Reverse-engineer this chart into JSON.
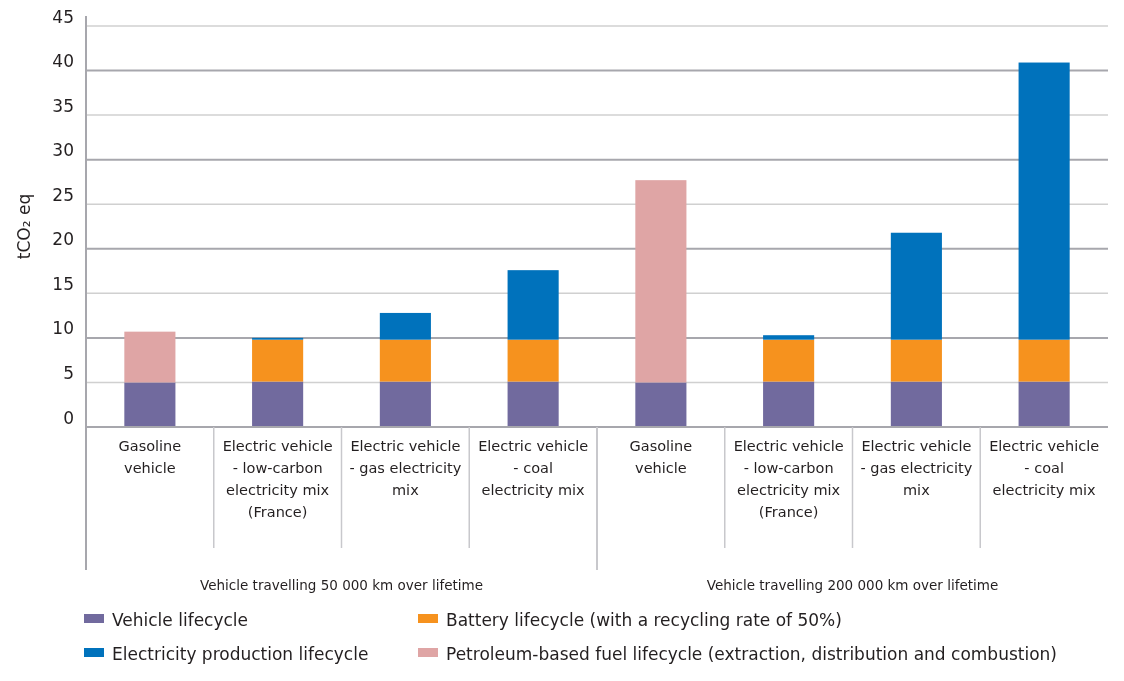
{
  "chart_data": {
    "type": "bar",
    "stacked": true,
    "ylabel": "tCO₂ eq",
    "categories": [
      "Gasoline vehicle",
      "Electric vehicle - low-carbon electricity mix (France)",
      "Electric vehicle - gas electricity mix",
      "Electric vehicle - coal electricity mix",
      "Gasoline vehicle",
      "Electric vehicle - low-carbon electricity mix (France)",
      "Electric vehicle - gas electricity mix",
      "Electric vehicle - coal electricity mix"
    ],
    "annotations": [
      "Vehicle travelling 50 000 km over lifetime",
      "Vehicle travelling 200 000 km over lifetime"
    ],
    "series": [
      {
        "name": "Vehicle lifecycle",
        "color": "#716a9e",
        "values": [
          5.0,
          5.1,
          5.1,
          5.1,
          5.0,
          5.1,
          5.1,
          5.1
        ]
      },
      {
        "name": "Battery lifecycle (with a recycling rate of 50%)",
        "color": "#f6921e",
        "values": [
          null,
          4.7,
          4.7,
          4.7,
          null,
          4.7,
          4.7,
          4.7
        ]
      },
      {
        "name": "Electricity production lifecycle",
        "color": "#0072bc",
        "values": [
          null,
          0.2,
          3.0,
          7.8,
          null,
          0.5,
          12.0,
          31.1
        ]
      },
      {
        "name": "Petroleum-based fuel lifecycle (extraction, distribution and combustion)",
        "color": "#dfa5a5",
        "values": [
          5.7,
          null,
          null,
          null,
          22.7,
          null,
          null,
          null
        ]
      }
    ],
    "ylim": [
      0,
      45
    ],
    "yticks": [
      0,
      5,
      10,
      15,
      20,
      25,
      30,
      35,
      40,
      45
    ],
    "grid": "y",
    "legend": "bottom"
  }
}
